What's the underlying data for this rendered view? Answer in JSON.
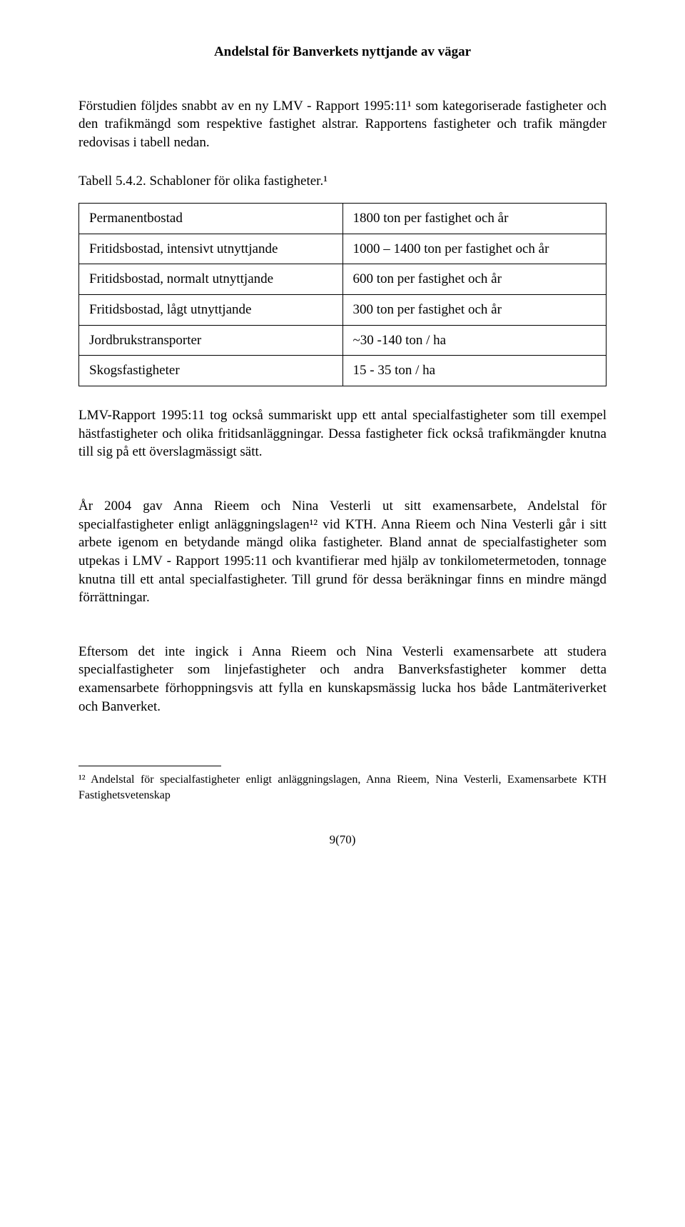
{
  "running_head": "Andelstal för Banverkets nyttjande av vägar",
  "para1": "Förstudien följdes snabbt av en ny LMV - Rapport 1995:11¹ som kategoriserade fastigheter och den trafikmängd som respektive fastighet alstrar. Rapportens fastigheter och trafik mängder redovisas i tabell nedan.",
  "table_caption": "Tabell 5.4.2. Schabloner för olika fastigheter.¹",
  "table": {
    "rows": [
      [
        "Permanentbostad",
        "1800 ton per fastighet och år"
      ],
      [
        "Fritidsbostad, intensivt utnyttjande",
        "1000 – 1400 ton per fastighet och år"
      ],
      [
        "Fritidsbostad, normalt utnyttjande",
        "600 ton per fastighet och år"
      ],
      [
        "Fritidsbostad, lågt utnyttjande",
        "300 ton per fastighet och år"
      ],
      [
        "Jordbrukstransporter",
        "~30 -140 ton / ha"
      ],
      [
        "Skogsfastigheter",
        "15 - 35 ton / ha"
      ]
    ]
  },
  "para2": "LMV-Rapport 1995:11 tog också summariskt upp ett antal specialfastigheter som till exempel hästfastigheter och olika fritidsanläggningar. Dessa fastigheter fick också trafikmängder knutna till sig på ett överslagmässigt sätt.",
  "para3": "År 2004 gav Anna Rieem och Nina Vesterli ut sitt examensarbete, Andelstal för specialfastigheter enligt anläggningslagen¹² vid KTH. Anna Rieem och Nina Vesterli går i sitt arbete igenom en betydande mängd olika fastigheter. Bland annat de specialfastigheter som utpekas i LMV - Rapport 1995:11 och kvantifierar med hjälp av tonkilometermetoden, tonnage knutna till ett antal specialfastigheter. Till grund för dessa beräkningar finns en mindre mängd förrättningar.",
  "para4": "Eftersom det inte ingick i Anna Rieem och Nina Vesterli examensarbete att studera specialfastigheter som linjefastigheter och andra Banverksfastigheter kommer detta examensarbete förhoppningsvis att fylla en kunskapsmässig lucka hos både Lantmäteriverket och Banverket.",
  "footnote": "¹² Andelstal för specialfastigheter enligt anläggningslagen, Anna Rieem, Nina Vesterli, Examensarbete KTH Fastighetsvetenskap",
  "page_num": "9(70)"
}
